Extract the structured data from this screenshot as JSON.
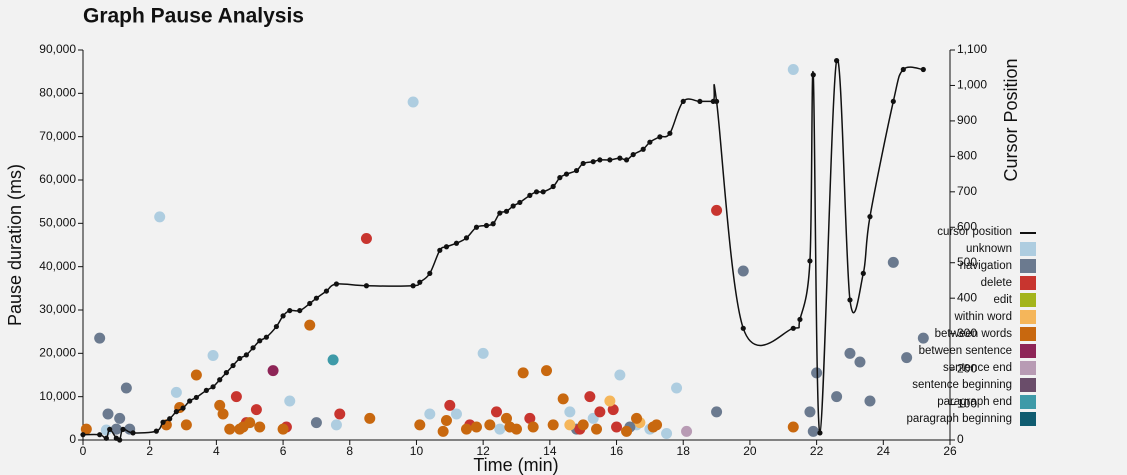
{
  "chart_data": {
    "type": "scatter",
    "title": "Graph Pause Analysis",
    "x_label": "Time (min)",
    "y_label": "Pause duration (ms)",
    "y2_label": "Cursor Position",
    "xlim": [
      0,
      26
    ],
    "xticks": [
      0,
      2,
      4,
      6,
      8,
      10,
      12,
      14,
      16,
      18,
      20,
      22,
      24,
      26
    ],
    "ylim": [
      0,
      90000
    ],
    "yticks": [
      0,
      {
        "value": 10000,
        "label": "10,000"
      },
      {
        "value": 20000,
        "label": "20,000"
      },
      {
        "value": 30000,
        "label": "30,000"
      },
      {
        "value": 40000,
        "label": "40,000"
      },
      {
        "value": 50000,
        "label": "50,000"
      },
      {
        "value": 60000,
        "label": "60,000"
      },
      {
        "value": 70000,
        "label": "70,000"
      },
      {
        "value": 80000,
        "label": "80,000"
      },
      {
        "value": 90000,
        "label": "90,000"
      }
    ],
    "y2lim": [
      0,
      1100
    ],
    "y2ticks": [
      0,
      100,
      200,
      300,
      400,
      500,
      600,
      700,
      800,
      900,
      {
        "value": 1000,
        "label": "1,000"
      },
      {
        "value": 1100,
        "label": "1,100"
      }
    ],
    "series": [
      {
        "name": "cursor position",
        "type": "line",
        "axis": "y2",
        "color": "#111111",
        "x": [
          0.0,
          0.5,
          0.7,
          0.8,
          1.0,
          1.1,
          1.2,
          1.5,
          2.2,
          2.4,
          2.6,
          2.8,
          3.0,
          3.2,
          3.4,
          3.7,
          3.9,
          4.1,
          4.3,
          4.5,
          4.7,
          4.9,
          5.1,
          5.3,
          5.5,
          5.8,
          6.0,
          6.2,
          6.5,
          6.8,
          7.0,
          7.3,
          7.6,
          8.5,
          9.9,
          10.1,
          10.4,
          10.7,
          10.9,
          11.2,
          11.5,
          11.8,
          12.1,
          12.3,
          12.5,
          12.7,
          12.9,
          13.1,
          13.4,
          13.6,
          13.8,
          14.1,
          14.3,
          14.5,
          14.8,
          15.0,
          15.3,
          15.5,
          15.8,
          16.1,
          16.3,
          16.5,
          16.8,
          17.0,
          17.3,
          17.6,
          18.0,
          18.5,
          18.9,
          19.0,
          19.8,
          21.3,
          21.5,
          21.8,
          21.9,
          22.1,
          22.6,
          23.0,
          23.4,
          23.6,
          24.3,
          24.6,
          25.2
        ],
        "values": [
          15,
          15,
          5,
          30,
          5,
          0,
          30,
          20,
          25,
          50,
          60,
          80,
          90,
          110,
          120,
          140,
          150,
          170,
          190,
          210,
          230,
          240,
          260,
          280,
          290,
          320,
          350,
          365,
          365,
          385,
          400,
          420,
          440,
          435,
          435,
          445,
          470,
          535,
          545,
          555,
          570,
          600,
          605,
          610,
          640,
          645,
          660,
          670,
          690,
          700,
          700,
          715,
          740,
          750,
          760,
          780,
          785,
          790,
          790,
          795,
          790,
          805,
          820,
          840,
          855,
          865,
          955,
          955,
          955,
          955,
          315,
          315,
          340,
          505,
          1030,
          20,
          1070,
          395,
          470,
          630,
          955,
          1045,
          1045
        ]
      },
      {
        "name": "unknown",
        "color": "#aecde0",
        "x": [
          0.7,
          2.3,
          2.8,
          3.9,
          6.2,
          7.6,
          9.9,
          10.4,
          11.2,
          12.0,
          12.5,
          14.6,
          15.3,
          16.1,
          16.6,
          17.0,
          17.5,
          17.8,
          21.3
        ],
        "values": [
          2300,
          51500,
          11000,
          19500,
          9000,
          3500,
          78000,
          6000,
          6000,
          20000,
          2500,
          6500,
          5000,
          15000,
          3500,
          2500,
          1500,
          12000,
          85500
        ]
      },
      {
        "name": "navigation",
        "color": "#6b7a8f",
        "x": [
          0.5,
          0.75,
          1.0,
          1.1,
          1.3,
          1.4,
          7.0,
          14.8,
          16.4,
          19.0,
          19.8,
          21.8,
          21.9,
          22.0,
          22.6,
          23.0,
          23.3,
          23.6,
          24.3,
          24.7,
          25.2
        ],
        "values": [
          23500,
          6000,
          2500,
          5000,
          12000,
          2500,
          4000,
          2500,
          3000,
          6500,
          39000,
          6500,
          2000,
          15500,
          10000,
          20000,
          18000,
          9000,
          41000,
          19000,
          23500
        ]
      },
      {
        "name": "delete",
        "color": "#c8352f",
        "x": [
          4.6,
          4.9,
          5.2,
          6.1,
          7.7,
          8.5,
          11.0,
          11.6,
          12.4,
          13.4,
          14.9,
          15.2,
          15.5,
          15.9,
          16.0,
          19.0
        ],
        "values": [
          10000,
          4000,
          7000,
          3000,
          6000,
          46500,
          8000,
          3500,
          6500,
          5000,
          2500,
          10000,
          6500,
          7000,
          3000,
          53000
        ]
      },
      {
        "name": "edit",
        "color": "#a4b51c",
        "x": [],
        "values": []
      },
      {
        "name": "within word",
        "color": "#f5b65a",
        "x": [
          14.6,
          15.8,
          16.7
        ],
        "values": [
          3500,
          9000,
          4000
        ]
      },
      {
        "name": "between words",
        "color": "#c8680f",
        "x": [
          0.1,
          2.5,
          2.9,
          3.1,
          3.4,
          4.1,
          4.2,
          4.4,
          4.7,
          4.8,
          5.0,
          5.3,
          6.0,
          6.8,
          8.6,
          10.1,
          10.8,
          10.9,
          11.5,
          11.8,
          12.2,
          12.7,
          12.8,
          13.0,
          13.2,
          13.5,
          13.9,
          14.1,
          14.4,
          15.0,
          15.4,
          16.3,
          16.6,
          17.1,
          17.2,
          21.3
        ],
        "values": [
          2500,
          3500,
          7500,
          3500,
          15000,
          8000,
          6000,
          2500,
          2500,
          3000,
          4000,
          3000,
          2500,
          26500,
          5000,
          3500,
          2000,
          4500,
          2500,
          3000,
          3500,
          5000,
          3000,
          2500,
          15500,
          3000,
          16000,
          3500,
          9500,
          3500,
          2500,
          2000,
          5000,
          3000,
          3500,
          3000
        ]
      },
      {
        "name": "between sentence",
        "color": "#8e2557",
        "x": [
          5.7
        ],
        "values": [
          16000
        ]
      },
      {
        "name": "sentence end",
        "color": "#b89bb4",
        "x": [
          18.1
        ],
        "values": [
          2000
        ]
      },
      {
        "name": "sentence beginning",
        "color": "#6a4d6a",
        "x": [],
        "values": []
      },
      {
        "name": "paragraph end",
        "color": "#3e9aa8",
        "x": [
          7.5
        ],
        "values": [
          18500
        ]
      },
      {
        "name": "paragraph beginning",
        "color": "#105c70",
        "x": [],
        "values": []
      }
    ]
  }
}
